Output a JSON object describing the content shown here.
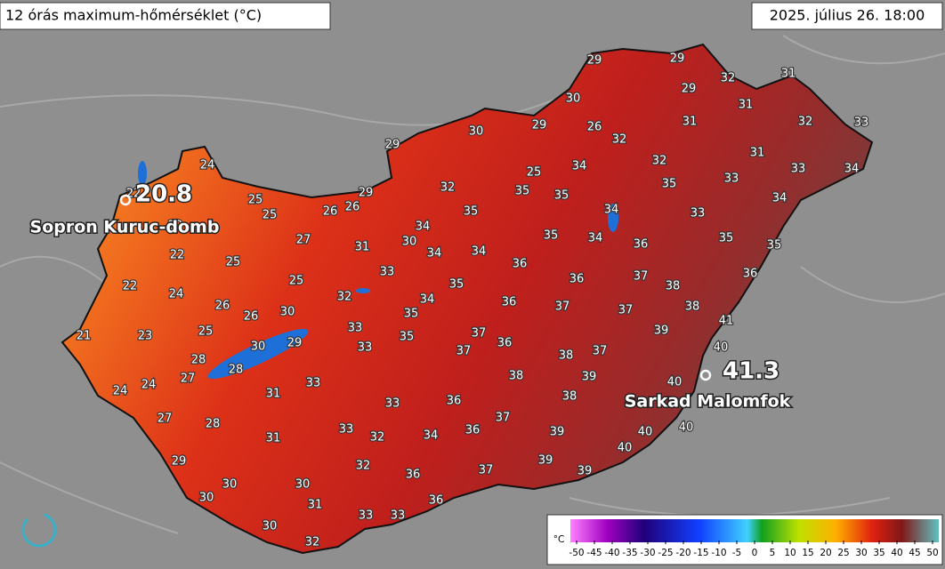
{
  "header": {
    "title": "12 órás maximum-hőmérséklet (°C)",
    "timestamp": "2025. július 26. 18:00"
  },
  "stations": [
    {
      "value": 20.8,
      "name": "Sopron Kuruc-domb"
    },
    {
      "value": 41.3,
      "name": "Sarkad Malomfok"
    }
  ],
  "readings": [
    24,
    22,
    25,
    25,
    26,
    26,
    29,
    29,
    30,
    29,
    29,
    29,
    29,
    32,
    31,
    30,
    26,
    32,
    31,
    31,
    32,
    33,
    31,
    32,
    34,
    25,
    35,
    35,
    32,
    35,
    35,
    33,
    33,
    34,
    34,
    34,
    34,
    35,
    36,
    33,
    35,
    35,
    27,
    31,
    34,
    30,
    34,
    34,
    22,
    22,
    25,
    33,
    36,
    35,
    34,
    36,
    37,
    38,
    36,
    22,
    24,
    25,
    26,
    26,
    30,
    32,
    33,
    35,
    36,
    37,
    37,
    38,
    41,
    21,
    23,
    25,
    30,
    29,
    33,
    35,
    37,
    37,
    36,
    38,
    37,
    39,
    40,
    28,
    28,
    27,
    24,
    24,
    31,
    33,
    38,
    39,
    40,
    33,
    36,
    38,
    27,
    28,
    37,
    33,
    31,
    32,
    34,
    36,
    39,
    40,
    40,
    40,
    29,
    32,
    36,
    37,
    39,
    39,
    30,
    30,
    30,
    31,
    36,
    33,
    33,
    30,
    32
  ],
  "legend": {
    "unit": "°C",
    "ticks": [
      -50,
      -45,
      -40,
      -35,
      -30,
      -25,
      -20,
      -15,
      -10,
      -5,
      0,
      5,
      10,
      15,
      20,
      25,
      30,
      35,
      40,
      45,
      50
    ]
  }
}
